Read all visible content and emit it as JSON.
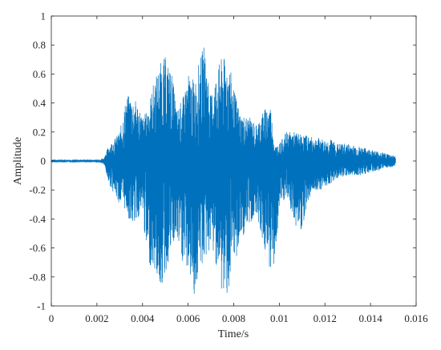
{
  "chart_data": {
    "type": "line",
    "title": "",
    "xlabel": "Time/s",
    "ylabel": "Amplitude",
    "xlim": [
      0,
      0.016
    ],
    "ylim": [
      -1,
      1
    ],
    "xticks": [
      0,
      0.002,
      0.004,
      0.006,
      0.008,
      0.01,
      0.012,
      0.014,
      0.016
    ],
    "xtick_labels": [
      "0",
      "0.002",
      "0.004",
      "0.006",
      "0.008",
      "0.01",
      "0.012",
      "0.014",
      "0.016"
    ],
    "yticks": [
      -1,
      -0.8,
      -0.6,
      -0.4,
      -0.2,
      0,
      0.2,
      0.4,
      0.6,
      0.8,
      1
    ],
    "ytick_labels": [
      "-1",
      "-0.8",
      "-0.6",
      "-0.4",
      "-0.2",
      "0",
      "0.2",
      "0.4",
      "0.6",
      "0.8",
      "1"
    ],
    "grid": false,
    "legend": false,
    "series": [
      {
        "color": "#0072BD",
        "envelope": {
          "t": [
            0,
            0.0005,
            0.001,
            0.0015,
            0.002,
            0.0023,
            0.0025,
            0.003,
            0.0033,
            0.0035,
            0.0038,
            0.004,
            0.0042,
            0.0045,
            0.0048,
            0.005,
            0.0053,
            0.0055,
            0.0058,
            0.006,
            0.0063,
            0.0065,
            0.0067,
            0.007,
            0.0073,
            0.0075,
            0.0078,
            0.008,
            0.0083,
            0.0087,
            0.009,
            0.0093,
            0.0096,
            0.0098,
            0.01,
            0.0103,
            0.0107,
            0.011,
            0.0112,
            0.0115,
            0.0118,
            0.012,
            0.0123,
            0.0125,
            0.013,
            0.0135,
            0.014,
            0.0145,
            0.015,
            0.0151
          ],
          "upper": [
            0.01,
            0.01,
            0.01,
            0.01,
            0.01,
            0.02,
            0.1,
            0.2,
            0.45,
            0.45,
            0.4,
            0.3,
            0.35,
            0.55,
            0.68,
            0.72,
            0.6,
            0.35,
            0.45,
            0.6,
            0.55,
            0.7,
            0.8,
            0.45,
            0.65,
            0.72,
            0.68,
            0.5,
            0.32,
            0.3,
            0.25,
            0.35,
            0.4,
            0.1,
            0.12,
            0.2,
            0.2,
            0.18,
            0.18,
            0.16,
            0.16,
            0.14,
            0.15,
            0.12,
            0.12,
            0.1,
            0.08,
            0.06,
            0.04,
            0.03
          ],
          "lower": [
            -0.01,
            -0.01,
            -0.01,
            -0.01,
            -0.01,
            -0.02,
            -0.15,
            -0.3,
            -0.35,
            -0.45,
            -0.4,
            -0.35,
            -0.7,
            -0.75,
            -0.88,
            -0.8,
            -0.6,
            -0.55,
            -0.75,
            -0.75,
            -0.95,
            -0.75,
            -0.7,
            -0.6,
            -0.75,
            -0.95,
            -0.9,
            -0.75,
            -0.55,
            -0.45,
            -0.35,
            -0.6,
            -0.75,
            -0.72,
            -0.35,
            -0.25,
            -0.45,
            -0.48,
            -0.3,
            -0.2,
            -0.2,
            -0.18,
            -0.15,
            -0.12,
            -0.1,
            -0.1,
            -0.08,
            -0.06,
            -0.04,
            -0.03
          ]
        }
      }
    ]
  }
}
